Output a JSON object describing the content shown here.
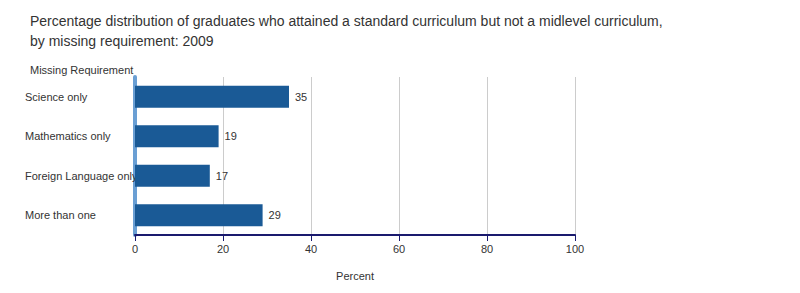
{
  "chart_data": {
    "type": "bar",
    "orientation": "horizontal",
    "title": "Percentage distribution of graduates who attained a standard curriculum but not a midlevel curriculum,\nby missing requirement: 2009",
    "ylabel": "Missing Requirement",
    "xlabel": "Percent",
    "categories": [
      "Science only",
      "Mathematics only",
      "Foreign Language only",
      "More than one"
    ],
    "values": [
      35,
      19,
      17,
      29
    ],
    "color": "#1a5a96",
    "xlim": [
      0,
      100
    ],
    "xticks": [
      0,
      20,
      40,
      60,
      80,
      100
    ],
    "grid": true,
    "data_labels": true
  }
}
